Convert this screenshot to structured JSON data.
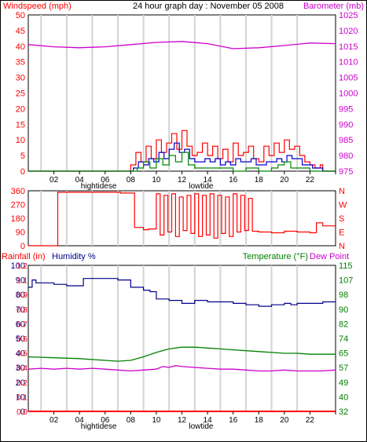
{
  "title": "24 hour graph day : November 05 2008",
  "x_ticks": [
    "02",
    "04",
    "06",
    "08",
    "10",
    "12",
    "14",
    "16",
    "18",
    "20",
    "22",
    ""
  ],
  "tide_labels": {
    "high": "hightidese",
    "low": "lowtide"
  },
  "colors": {
    "wind": "#ff0000",
    "gust_blue": "#0000cc",
    "gust_green": "#008800",
    "barometer": "#cc00cc",
    "direction": "#ff0000",
    "rain": "#ff0000",
    "humidity": "#00008b",
    "temperature": "#008000",
    "dewpoint": "#cc00cc",
    "grid": "#d3d3d3"
  },
  "chart_data": [
    {
      "type": "line",
      "name": "wind-barometer",
      "ylabel_left": "Windspeed (mph)",
      "ylabel_right": "Barometer (mb)",
      "left_ticks": [
        "50",
        "45",
        "40",
        "35",
        "30",
        "25",
        "20",
        "15",
        "10",
        "5",
        "0"
      ],
      "right_ticks": [
        "1025",
        "1020",
        "1015",
        "1010",
        "1005",
        "1000",
        "995",
        "990",
        "985",
        "980",
        "975"
      ],
      "ylim_left": [
        0,
        50
      ],
      "ylim_right": [
        975,
        1025
      ],
      "xlim": [
        0,
        24
      ],
      "series": [
        {
          "key": "barometer",
          "axis": "right",
          "x": [
            0,
            2,
            4,
            6,
            8,
            10,
            12,
            14,
            16,
            18,
            20,
            22,
            24
          ],
          "values": [
            1015.5,
            1014.8,
            1014.5,
            1014.8,
            1015.5,
            1016.2,
            1016.5,
            1015.8,
            1014.2,
            1014.5,
            1015.2,
            1016.0,
            1015.8
          ]
        },
        {
          "key": "wind",
          "axis": "left",
          "x": [
            0,
            7.6,
            8.0,
            8.4,
            8.8,
            9.2,
            9.6,
            10.0,
            10.4,
            10.8,
            11.2,
            11.6,
            12.0,
            12.4,
            12.8,
            13.2,
            13.6,
            14.0,
            14.4,
            14.8,
            15.2,
            15.6,
            16.0,
            16.4,
            16.8,
            17.2,
            17.6,
            18.0,
            18.4,
            18.8,
            19.2,
            19.6,
            20.0,
            20.4,
            20.8,
            21.2,
            21.6,
            22.0,
            22.4,
            22.8,
            23.0
          ],
          "values": [
            0,
            0,
            2,
            6,
            3,
            8,
            4,
            10,
            6,
            9,
            12,
            7,
            13,
            8,
            5,
            6,
            9,
            5,
            8,
            4,
            7,
            3,
            9,
            5,
            6,
            8,
            4,
            3,
            8,
            5,
            9,
            6,
            10,
            7,
            8,
            5,
            3,
            2,
            1,
            2,
            0
          ]
        },
        {
          "key": "gust_blue",
          "axis": "left",
          "x": [
            0,
            7.8,
            8.2,
            8.6,
            9.0,
            9.4,
            9.8,
            10.2,
            10.6,
            11.0,
            11.4,
            11.8,
            12.2,
            12.6,
            13.0,
            13.4,
            13.8,
            14.2,
            14.6,
            15.0,
            15.4,
            15.8,
            16.2,
            16.6,
            17.0,
            17.4,
            17.8,
            18.2,
            18.6,
            19.0,
            19.4,
            19.8,
            20.2,
            20.6,
            21.0,
            21.4,
            21.8,
            22.2,
            22.6,
            23.0
          ],
          "values": [
            0,
            0,
            1,
            3,
            2,
            4,
            3,
            6,
            4,
            7,
            9,
            6,
            7,
            4,
            3,
            3,
            4,
            3,
            4,
            2,
            3,
            2,
            4,
            3,
            3,
            4,
            2,
            2,
            3,
            3,
            4,
            3,
            5,
            4,
            4,
            2,
            2,
            1,
            1,
            0
          ]
        },
        {
          "key": "gust_green",
          "axis": "left",
          "x": [
            0,
            8.0,
            8.5,
            9.0,
            9.5,
            10.0,
            10.5,
            11.0,
            11.5,
            12.0,
            12.5,
            13.0,
            13.5,
            14.0,
            15.0,
            16.0,
            17.0,
            18.0,
            19.0,
            19.5,
            20.0,
            20.5,
            21.0,
            22.0,
            23.0
          ],
          "values": [
            0,
            0,
            1,
            3,
            1,
            4,
            2,
            5,
            3,
            6,
            2,
            1,
            1,
            1,
            1,
            0,
            1,
            0,
            1,
            2,
            3,
            1,
            1,
            0,
            0
          ]
        }
      ]
    },
    {
      "type": "line",
      "name": "wind-direction",
      "left_ticks": [
        "360",
        "270",
        "180",
        "90",
        "0"
      ],
      "right_ticks": [
        "N",
        "W",
        "S",
        "E",
        "N"
      ],
      "ylim": [
        0,
        360
      ],
      "xlim": [
        0,
        24
      ],
      "series": [
        {
          "key": "direction",
          "x": [
            0,
            2.2,
            2.3,
            7.0,
            7.2,
            8.0,
            8.3,
            9.0,
            9.4,
            10.0,
            10.3,
            10.6,
            10.9,
            11.2,
            11.5,
            11.8,
            12.1,
            12.4,
            12.7,
            13.0,
            13.3,
            13.6,
            13.9,
            14.2,
            14.5,
            14.8,
            15.1,
            15.4,
            15.7,
            16.0,
            16.3,
            16.6,
            16.9,
            17.2,
            17.5,
            18.0,
            19.0,
            20.0,
            21.0,
            22.0,
            22.5,
            23.0,
            24.0
          ],
          "values": [
            0,
            0,
            350,
            350,
            345,
            345,
            120,
            105,
            110,
            340,
            70,
            330,
            90,
            340,
            60,
            320,
            100,
            330,
            80,
            340,
            60,
            330,
            70,
            340,
            50,
            330,
            80,
            320,
            60,
            340,
            90,
            330,
            100,
            310,
            95,
            90,
            85,
            95,
            90,
            85,
            150,
            130,
            130
          ]
        }
      ]
    },
    {
      "type": "line",
      "name": "rain-humidity-temperature",
      "ylabel_rain": "Rainfall (in)",
      "ylabel_humidity": "Humidity %",
      "ylabel_temperature": "Temperature (°F)",
      "ylabel_dewpoint": "Dew Point",
      "humidity_ticks": [
        "100",
        "90",
        "80",
        "70",
        "60",
        "50",
        "40",
        "30",
        "20",
        "10",
        "0"
      ],
      "rain_ticks": [
        "1.2",
        "1.1",
        "0.9",
        "0.8",
        "0.7",
        "0.6",
        "0.5",
        "0.4",
        "0.2",
        "0.1",
        "0.0"
      ],
      "temperature_ticks": [
        "115",
        "107",
        "98",
        "90",
        "82",
        "74",
        "65",
        "57",
        "49",
        "40",
        "32"
      ],
      "ylim_humidity": [
        0,
        100
      ],
      "ylim_temperature": [
        32,
        115
      ],
      "ylim_rain": [
        0,
        1.2
      ],
      "xlim": [
        0,
        24
      ],
      "series": [
        {
          "key": "humidity",
          "axis": "humidity",
          "x": [
            0,
            0.3,
            0.6,
            1.0,
            2.0,
            3.0,
            4.0,
            4.3,
            5.0,
            5.5,
            6.0,
            7.0,
            8.0,
            9.0,
            9.5,
            10.0,
            11.0,
            12.0,
            13.0,
            14.0,
            15.0,
            16.0,
            17.0,
            18.0,
            19.0,
            20.0,
            20.5,
            21.0,
            22.0,
            23.0,
            24.0
          ],
          "values": [
            85,
            90,
            88,
            88,
            87,
            86,
            86,
            91,
            91,
            91,
            91,
            90,
            85,
            83,
            82,
            77,
            76,
            74,
            76,
            75,
            75,
            74,
            73,
            72,
            73,
            74,
            73,
            74,
            74,
            75,
            75
          ]
        },
        {
          "key": "temperature",
          "axis": "temperature",
          "x": [
            0,
            2,
            4,
            6,
            7,
            8,
            9,
            10,
            11,
            12,
            13,
            14,
            15,
            16,
            17,
            18,
            19,
            20,
            21,
            22,
            23,
            24
          ],
          "values": [
            63,
            62.5,
            62,
            61,
            60.5,
            61,
            63,
            65.5,
            67.5,
            68.5,
            68.5,
            68,
            67.5,
            67,
            66.5,
            66,
            65.5,
            65,
            65,
            64.5,
            64.5,
            64.5
          ]
        },
        {
          "key": "dewpoint",
          "axis": "temperature",
          "x": [
            0,
            1,
            2,
            3,
            4,
            5,
            6,
            7,
            8,
            9,
            10,
            10.5,
            11,
            11.5,
            12,
            13,
            14,
            15,
            16,
            17,
            18,
            19,
            20,
            21,
            22,
            23,
            24
          ],
          "values": [
            56,
            56.5,
            56,
            56.5,
            56,
            56.5,
            56,
            55.5,
            55,
            55.5,
            56,
            57.5,
            57,
            58,
            57.5,
            57,
            56.5,
            56,
            56,
            55.5,
            55,
            55,
            55.5,
            55,
            55,
            55,
            55.5
          ]
        },
        {
          "key": "rain",
          "axis": "rain",
          "x": [
            0,
            24
          ],
          "values": [
            0.0,
            0.0
          ]
        }
      ]
    }
  ]
}
